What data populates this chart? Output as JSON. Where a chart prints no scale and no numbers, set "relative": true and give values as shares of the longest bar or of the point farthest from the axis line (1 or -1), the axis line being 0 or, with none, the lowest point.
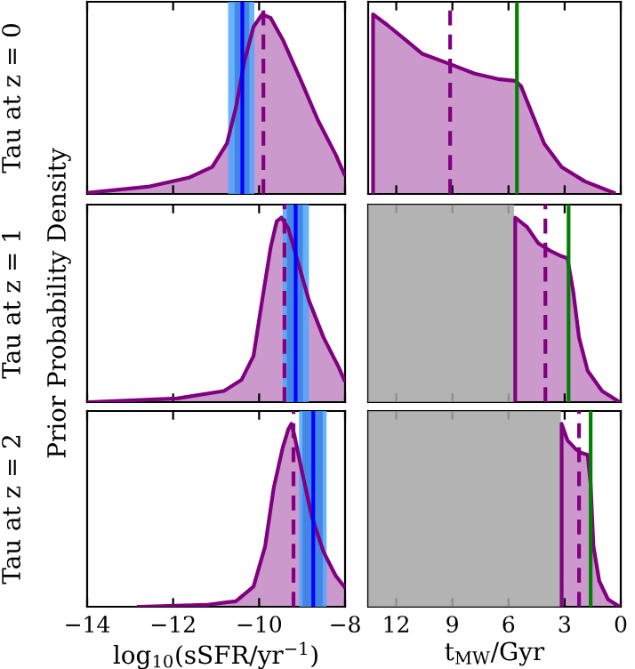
{
  "chart_data": [
    {
      "type": "area",
      "relative": true,
      "ylabel": "Tau at z = 0",
      "tick_labels": false,
      "xlim": [
        -14,
        -8
      ],
      "series": [
        {
          "color": "#800080",
          "x": [
            -13.96,
            -12.59,
            -11.64,
            -11.09,
            -10.75,
            -10.54,
            -10.34,
            -10.13,
            -9.93,
            -9.73,
            -9.45,
            -9.04,
            -8.63,
            -8.22,
            -8.02
          ],
          "values": [
            0.007,
            0.04,
            0.09,
            0.15,
            0.28,
            0.48,
            0.74,
            0.93,
            1.0,
            0.98,
            0.86,
            0.64,
            0.41,
            0.22,
            0.11
          ]
        }
      ],
      "bands": [
        {
          "axis": "x",
          "from": -10.72,
          "to": -10.11,
          "color": "#4da6ff"
        },
        {
          "axis": "x",
          "from": -10.57,
          "to": -10.23,
          "color": "#3d80e0"
        }
      ],
      "ref_lines": [
        {
          "axis": "x",
          "value": -10.39,
          "color": "#0000ff",
          "line_style": "solid"
        },
        {
          "axis": "x",
          "value": -9.9,
          "color": "#800080",
          "line_style": "dashed"
        }
      ]
    },
    {
      "type": "area",
      "relative": true,
      "tick_labels": false,
      "xlim": [
        13.5,
        0
      ],
      "series": [
        {
          "color": "#800080",
          "x": [
            13.24,
            13.24,
            12.47,
            11.53,
            10.6,
            9.05,
            7.81,
            6.57,
            5.64,
            5.33,
            4.71,
            4.09,
            3.16,
            1.92,
            0.37
          ],
          "values": [
            0,
            1.0,
            0.94,
            0.86,
            0.78,
            0.72,
            0.67,
            0.64,
            0.63,
            0.6,
            0.44,
            0.28,
            0.15,
            0.07,
            0.006
          ]
        }
      ],
      "ref_lines": [
        {
          "axis": "x",
          "value": 9.12,
          "color": "#800080",
          "line_style": "dashed"
        },
        {
          "axis": "x",
          "value": 5.55,
          "color": "#008000",
          "line_style": "solid"
        }
      ]
    },
    {
      "type": "area",
      "relative": true,
      "ylabel": "Tau at z = 1",
      "annotations": [
        "Prior Probability Density"
      ],
      "tick_labels": false,
      "xlim": [
        -14,
        -8
      ],
      "series": [
        {
          "color": "#800080",
          "x": [
            -13.96,
            -11.91,
            -10.82,
            -10.41,
            -10.13,
            -9.93,
            -9.73,
            -9.59,
            -9.48,
            -9.32,
            -9.11,
            -8.84,
            -8.5,
            -8.15,
            -8.02
          ],
          "values": [
            0,
            0.02,
            0.06,
            0.12,
            0.25,
            0.55,
            0.84,
            0.98,
            1.0,
            0.94,
            0.77,
            0.55,
            0.35,
            0.19,
            0.12
          ]
        }
      ],
      "bands": [
        {
          "axis": "x",
          "from": -9.45,
          "to": -8.84,
          "color": "#4da6ff"
        },
        {
          "axis": "x",
          "from": -9.35,
          "to": -8.98,
          "color": "#3d80e0"
        }
      ],
      "ref_lines": [
        {
          "axis": "x",
          "value": -9.15,
          "color": "#0000ff",
          "line_style": "solid"
        },
        {
          "axis": "x",
          "value": -9.41,
          "color": "#800080",
          "line_style": "dashed"
        }
      ]
    },
    {
      "type": "area",
      "relative": true,
      "tick_labels": false,
      "xlim": [
        13.5,
        0
      ],
      "series": [
        {
          "color": "#800080",
          "x": [
            5.64,
            5.64,
            5.02,
            4.4,
            3.78,
            3.16,
            2.85,
            2.54,
            2.23,
            1.77,
            1.0,
            0.06
          ],
          "values": [
            0,
            1.0,
            0.95,
            0.86,
            0.82,
            0.79,
            0.78,
            0.6,
            0.35,
            0.17,
            0.06,
            0
          ]
        }
      ],
      "bands": [
        {
          "axis": "x",
          "from": 13.5,
          "to": 5.7,
          "color": "#a6a6a6"
        }
      ],
      "ref_lines": [
        {
          "axis": "x",
          "value": 4.03,
          "color": "#800080",
          "line_style": "dashed"
        },
        {
          "axis": "x",
          "value": 2.79,
          "color": "#008000",
          "line_style": "solid"
        }
      ]
    },
    {
      "type": "area",
      "relative": true,
      "ylabel": "Tau at z = 2",
      "xlabel": "log$_{10}$(sSFR/yr$^{−1}$)",
      "tick_labels": "x",
      "xlim": [
        -14,
        -8
      ],
      "xticks": [
        {
          "value": -14,
          "label": "−14"
        },
        {
          "value": -12,
          "label": "−12"
        },
        {
          "value": -10,
          "label": "−10"
        },
        {
          "value": -8,
          "label": "−8"
        }
      ],
      "series": [
        {
          "color": "#800080",
          "x": [
            -12.8,
            -11.23,
            -10.54,
            -10.13,
            -9.86,
            -9.66,
            -9.45,
            -9.32,
            -9.25,
            -9.18,
            -9.04,
            -8.77,
            -8.5,
            -8.22,
            -8.02
          ],
          "values": [
            0,
            0.01,
            0.03,
            0.11,
            0.33,
            0.65,
            0.87,
            0.97,
            1.0,
            0.94,
            0.78,
            0.49,
            0.3,
            0.17,
            0.11
          ]
        }
      ],
      "bands": [
        {
          "axis": "x",
          "from": -9.07,
          "to": -8.43,
          "color": "#4da6ff"
        },
        {
          "axis": "x",
          "from": -8.99,
          "to": -8.52,
          "color": "#3d80e0"
        }
      ],
      "ref_lines": [
        {
          "axis": "x",
          "value": -8.74,
          "color": "#0000ff",
          "line_style": "solid"
        },
        {
          "axis": "x",
          "value": -9.2,
          "color": "#800080",
          "line_style": "dashed"
        }
      ]
    },
    {
      "type": "area",
      "relative": true,
      "xlabel": "t$_{MW}$/Gyr",
      "tick_labels": "x",
      "xlim": [
        13.5,
        0
      ],
      "xticks": [
        12,
        9,
        6,
        3,
        0
      ],
      "series": [
        {
          "color": "#800080",
          "x": [
            3.16,
            3.16,
            2.85,
            2.39,
            2.08,
            1.77,
            1.61,
            1.46,
            1.15,
            0.68,
            0.06
          ],
          "values": [
            0,
            1.0,
            0.91,
            0.86,
            0.84,
            0.83,
            0.67,
            0.33,
            0.14,
            0.04,
            0
          ]
        }
      ],
      "bands": [
        {
          "axis": "x",
          "from": 13.5,
          "to": 3.2,
          "color": "#a6a6a6"
        }
      ],
      "ref_lines": [
        {
          "axis": "x",
          "value": 2.23,
          "color": "#800080",
          "line_style": "dashed"
        },
        {
          "axis": "x",
          "value": 1.61,
          "color": "#008000",
          "line_style": "solid"
        }
      ]
    }
  ]
}
